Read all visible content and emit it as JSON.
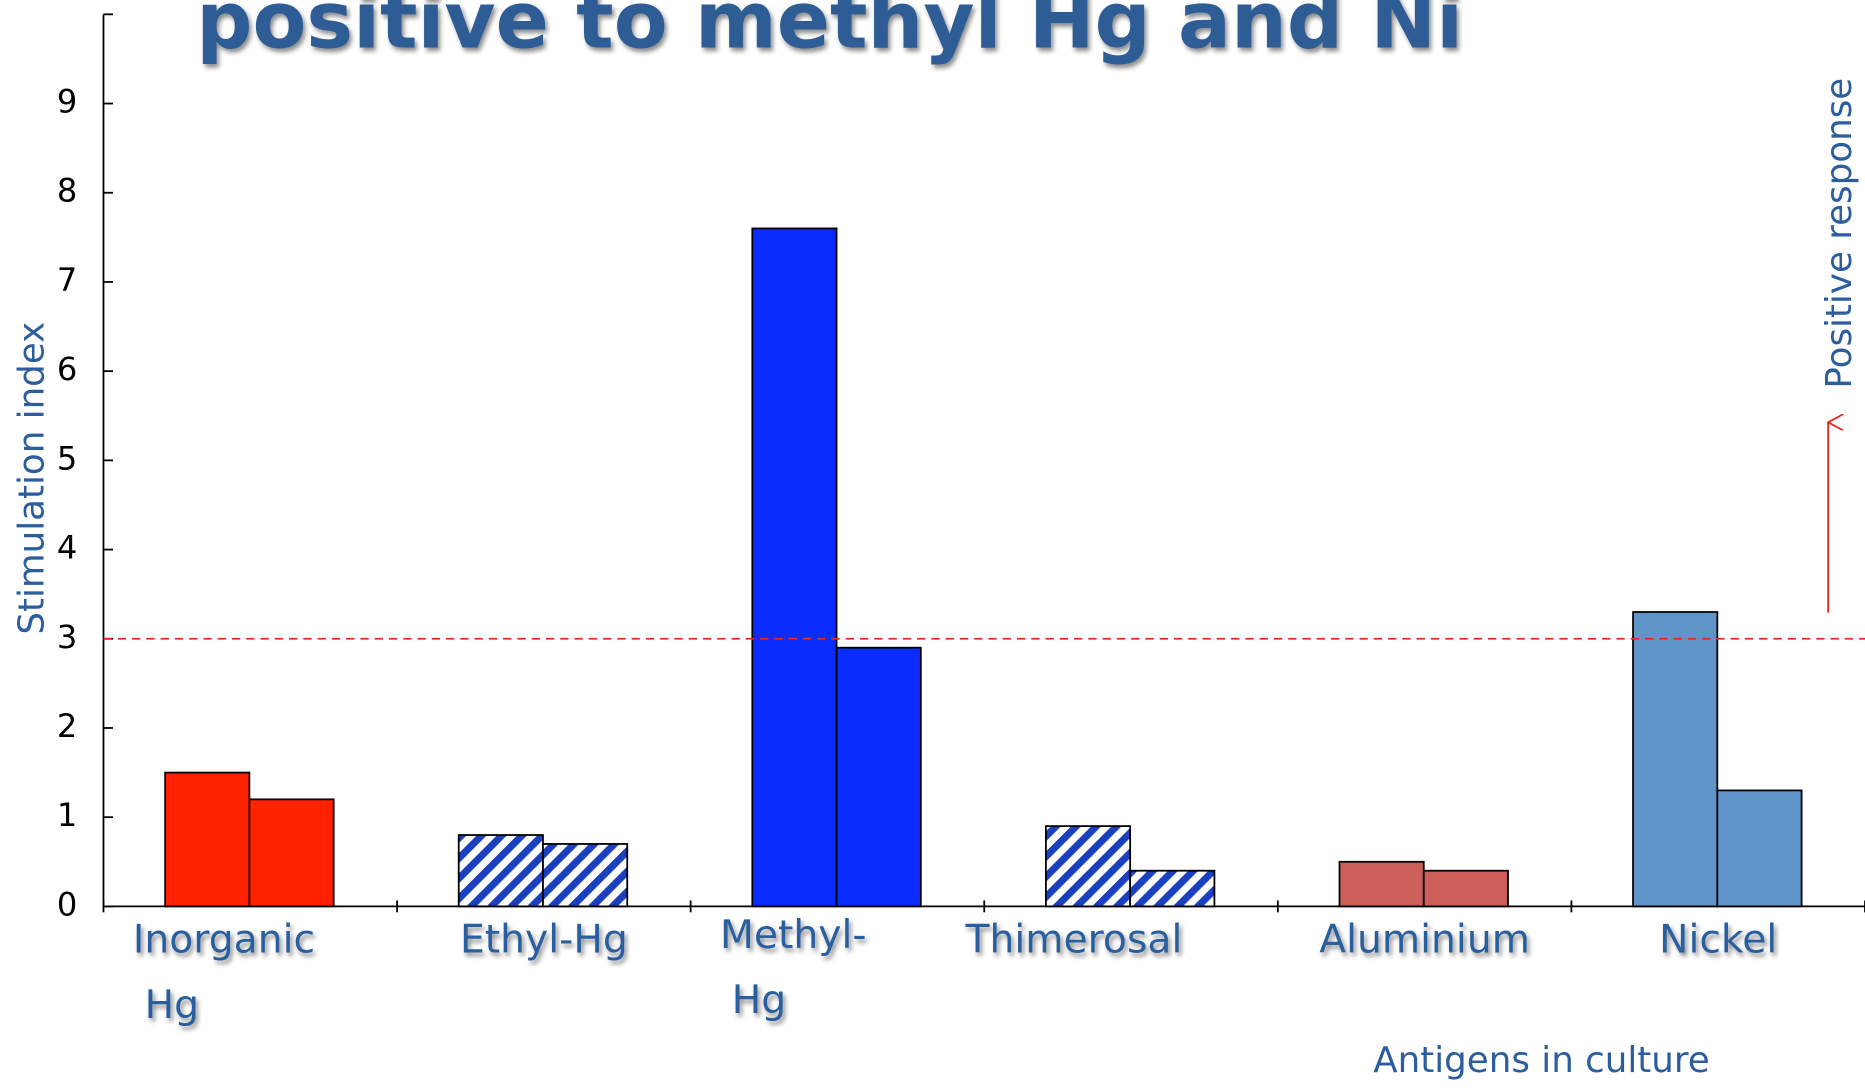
{
  "chart_data": {
    "type": "bar",
    "title": "positive to methyl Hg and Ni",
    "y_label": "Stimulation index",
    "x_label": "Antigens in culture",
    "annotation": "Positive  response",
    "categories": [
      [
        "Inorganic",
        "Hg"
      ],
      [
        "Ethyl-Hg"
      ],
      [
        "Methyl-",
        "Hg"
      ],
      [
        "Thimerosal"
      ],
      [
        "Aluminium"
      ],
      [
        "Nickel"
      ]
    ],
    "series": [
      {
        "values": [
          1.5,
          0.8,
          7.6,
          0.9,
          0.5,
          3.3
        ]
      },
      {
        "values": [
          1.2,
          0.7,
          2.9,
          0.4,
          0.4,
          1.3
        ]
      }
    ],
    "bar_colors": [
      "#ff2200",
      "#1a3fbf",
      "#0a2cff",
      "#1a3fbf",
      "#cd5f5a",
      "#5f95c8"
    ],
    "hatched": [
      false,
      true,
      false,
      true,
      false,
      false
    ],
    "threshold": 3,
    "threshold_color": "#e8281e",
    "ylim": [
      0,
      10
    ],
    "yticks": [
      0,
      1,
      2,
      3,
      4,
      5,
      6,
      7,
      8,
      9
    ]
  }
}
